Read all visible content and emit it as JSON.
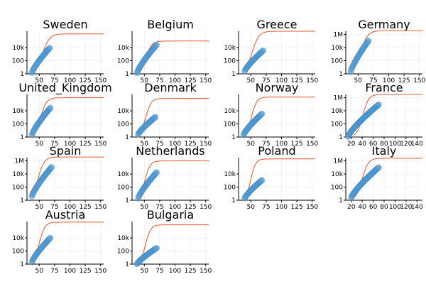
{
  "chart_data": [
    {
      "type": "scatter",
      "title": "Sweden",
      "xlim": [
        30,
        155
      ],
      "xticks": [
        50,
        75,
        100,
        125,
        150
      ],
      "yticks": [
        "1",
        "100",
        "10k"
      ],
      "model": {
        "start": 38,
        "mid": 55,
        "rate": 0.16,
        "plateau": 6.1
      },
      "points": {
        "x_start": 38,
        "x_end": 67,
        "y_start": 0.15,
        "y_end": 3.95
      }
    },
    {
      "type": "scatter",
      "title": "Belgium",
      "xlim": [
        30,
        155
      ],
      "xticks": [
        50,
        75,
        100,
        125,
        150
      ],
      "yticks": [
        "1",
        "100",
        "10k"
      ],
      "model": {
        "start": 37,
        "mid": 53,
        "rate": 0.17,
        "plateau": 5.0
      },
      "points": {
        "x_start": 38,
        "x_end": 70,
        "y_start": 0.1,
        "y_end": 4.45
      }
    },
    {
      "type": "scatter",
      "title": "Greece",
      "xlim": [
        30,
        155
      ],
      "xticks": [
        50,
        75,
        100,
        125,
        150
      ],
      "yticks": [
        "1",
        "100",
        "10k"
      ],
      "model": {
        "start": 39,
        "mid": 52,
        "rate": 0.18,
        "plateau": 6.5
      },
      "points": {
        "x_start": 40,
        "x_end": 70,
        "y_start": 0.4,
        "y_end": 3.55
      }
    },
    {
      "type": "scatter",
      "title": "Germany",
      "xlim": [
        30,
        155
      ],
      "xticks": [
        50,
        75,
        100,
        125,
        150
      ],
      "yticks": [
        "1",
        "100",
        "10k",
        "1M"
      ],
      "model": {
        "start": 36,
        "mid": 54,
        "rate": 0.17,
        "plateau": 6.6
      },
      "points": {
        "x_start": 38,
        "x_end": 67,
        "y_start": 0.3,
        "y_end": 5.05
      }
    },
    {
      "type": "scatter",
      "title": "United_Kingdom",
      "xlim": [
        30,
        155
      ],
      "xticks": [
        50,
        75,
        100,
        125,
        150
      ],
      "yticks": [
        "1",
        "100",
        "10k"
      ],
      "model": {
        "start": 38,
        "mid": 52,
        "rate": 0.19,
        "plateau": 6.0
      },
      "points": {
        "x_start": 38,
        "x_end": 68,
        "y_start": 0.3,
        "y_end": 4.45
      }
    },
    {
      "type": "scatter",
      "title": "Denmark",
      "xlim": [
        30,
        155
      ],
      "xticks": [
        50,
        75,
        100,
        125,
        150
      ],
      "yticks": [
        "1",
        "100",
        "10k"
      ],
      "model": {
        "start": 38,
        "mid": 52,
        "rate": 0.2,
        "plateau": 5.9
      },
      "points": {
        "x_start": 40,
        "x_end": 68,
        "y_start": 0.4,
        "y_end": 3.05
      }
    },
    {
      "type": "scatter",
      "title": "Norway",
      "xlim": [
        30,
        155
      ],
      "xticks": [
        50,
        75,
        100,
        125,
        150
      ],
      "yticks": [
        "1",
        "100",
        "10k"
      ],
      "model": {
        "start": 38,
        "mid": 51,
        "rate": 0.22,
        "plateau": 6.1
      },
      "points": {
        "x_start": 38,
        "x_end": 68,
        "y_start": 0.3,
        "y_end": 3.55
      }
    },
    {
      "type": "scatter",
      "title": "France",
      "xlim": [
        10,
        150
      ],
      "xticks": [
        20,
        40,
        60,
        80,
        100,
        120,
        140
      ],
      "yticks": [
        "1",
        "100",
        "10k",
        "1M"
      ],
      "model": {
        "start": 24,
        "mid": 41,
        "rate": 0.19,
        "plateau": 6.5
      },
      "points": {
        "x_start": 14,
        "x_end": 70,
        "y_start": 0.05,
        "y_end": 4.95
      }
    },
    {
      "type": "scatter",
      "title": "Spain",
      "xlim": [
        30,
        155
      ],
      "xticks": [
        50,
        75,
        100,
        125,
        150
      ],
      "yticks": [
        "1",
        "100",
        "10k",
        "1M"
      ],
      "model": {
        "start": 34,
        "mid": 48,
        "rate": 0.2,
        "plateau": 6.6
      },
      "points": {
        "x_start": 38,
        "x_end": 70,
        "y_start": 0.6,
        "y_end": 5.05
      }
    },
    {
      "type": "scatter",
      "title": "Netherlands",
      "xlim": [
        30,
        155
      ],
      "xticks": [
        50,
        75,
        100,
        125,
        150
      ],
      "yticks": [
        "1",
        "100",
        "10k"
      ],
      "model": {
        "start": 38,
        "mid": 51,
        "rate": 0.22,
        "plateau": 6.0
      },
      "points": {
        "x_start": 40,
        "x_end": 70,
        "y_start": 0.3,
        "y_end": 4.25
      }
    },
    {
      "type": "scatter",
      "title": "Poland",
      "xlim": [
        30,
        155
      ],
      "xticks": [
        50,
        75,
        100,
        125,
        150
      ],
      "yticks": [
        "1",
        "100",
        "10k"
      ],
      "model": {
        "start": 38,
        "mid": 50,
        "rate": 0.25,
        "plateau": 6.3
      },
      "points": {
        "x_start": 40,
        "x_end": 68,
        "y_start": 0.3,
        "y_end": 3.05
      }
    },
    {
      "type": "scatter",
      "title": "Italy",
      "xlim": [
        10,
        150
      ],
      "xticks": [
        20,
        40,
        60,
        80,
        100,
        120,
        140
      ],
      "yticks": [
        "1",
        "100",
        "10k",
        "1M"
      ],
      "model": {
        "start": 20,
        "mid": 40,
        "rate": 0.18,
        "plateau": 6.4
      },
      "points": {
        "x_start": 20,
        "x_end": 70,
        "y_start": 0.4,
        "y_end": 5.0
      }
    },
    {
      "type": "scatter",
      "title": "Austria",
      "xlim": [
        30,
        155
      ],
      "xticks": [
        50,
        75,
        100,
        125,
        150
      ],
      "yticks": [
        "1",
        "100",
        "10k"
      ],
      "model": {
        "start": 37,
        "mid": 50,
        "rate": 0.22,
        "plateau": 6.4
      },
      "points": {
        "x_start": 38,
        "x_end": 68,
        "y_start": 0.3,
        "y_end": 4.0
      }
    },
    {
      "type": "scatter",
      "title": "Bulgaria",
      "xlim": [
        30,
        155
      ],
      "xticks": [
        50,
        75,
        100,
        125,
        150
      ],
      "yticks": [
        "1",
        "100",
        "10k"
      ],
      "model": {
        "start": 39,
        "mid": 52,
        "rate": 0.22,
        "plateau": 6.0
      },
      "points": {
        "x_start": 38,
        "x_end": 70,
        "y_start": 0.0,
        "y_end": 2.45
      }
    }
  ]
}
